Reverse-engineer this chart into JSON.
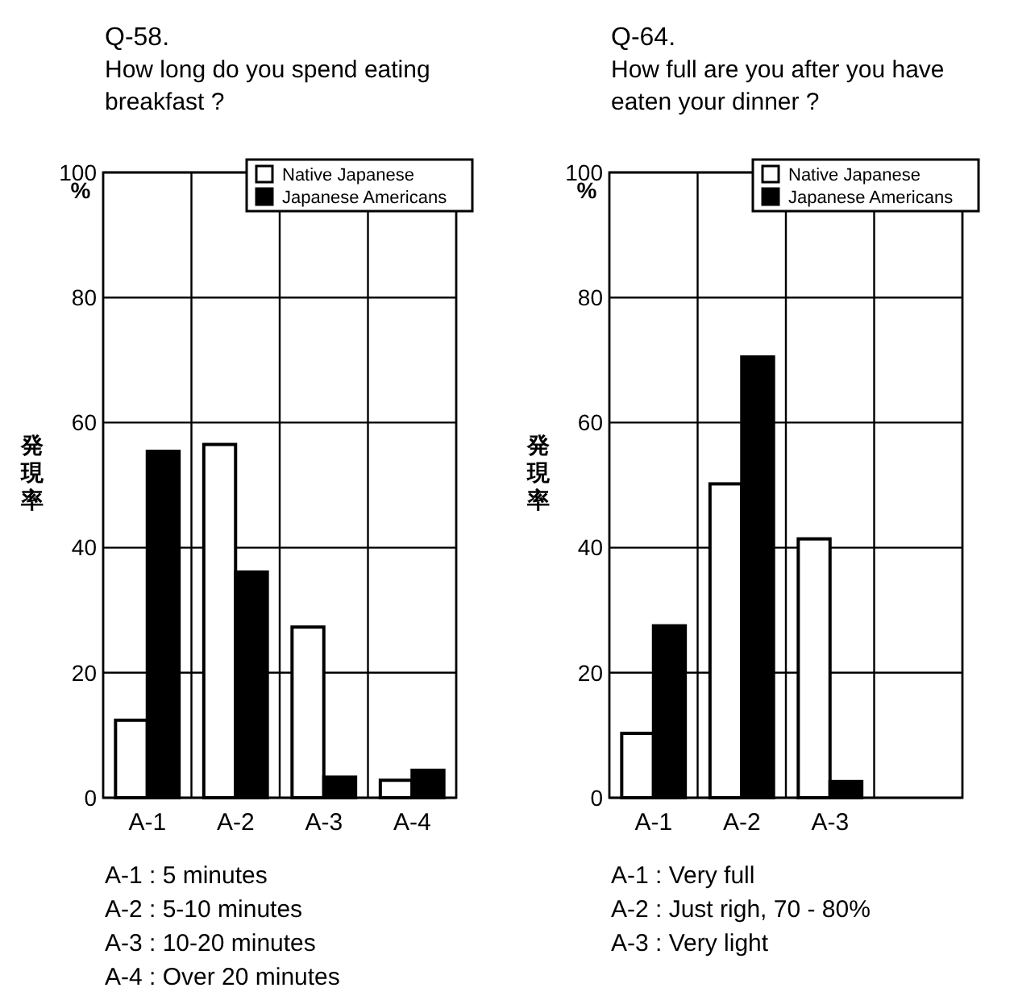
{
  "chart_data": [
    {
      "type": "bar",
      "title": "Q-58.",
      "subtitle": "How long do you spend eating breakfast ?",
      "ylabel": "発現率",
      "categories": [
        "A-1",
        "A-2",
        "A-3",
        "A-4"
      ],
      "series": [
        {
          "name": "Native Japanese",
          "color": "#ffffff",
          "values": [
            12.4,
            56.5,
            27.3,
            2.8
          ]
        },
        {
          "name": "Japanese Americans",
          "color": "#000000",
          "values": [
            55.4,
            36.1,
            3.3,
            4.4
          ]
        }
      ],
      "ylim": [
        0,
        100
      ],
      "yticks": [
        0,
        20,
        40,
        60,
        80,
        100
      ],
      "grid": true,
      "legend": "top right",
      "annotations": [
        "%",
        "A-1 : 5 minutes",
        "A-2 : 5-10 minutes",
        "A-3 : 10-20 minutes",
        "A-4 : Over 20 minutes"
      ]
    },
    {
      "type": "bar",
      "title": "Q-64.",
      "subtitle": "How full are you after you have eaten your dinner ?",
      "ylabel": "発現率",
      "categories": [
        "A-1",
        "A-2",
        "A-3",
        null
      ],
      "series": [
        {
          "name": "Native Japanese",
          "color": "#ffffff",
          "values": [
            10.3,
            50.2,
            41.4,
            null
          ]
        },
        {
          "name": "Japanese Americans",
          "color": "#000000",
          "values": [
            27.5,
            70.5,
            2.6,
            null
          ]
        }
      ],
      "ylim": [
        0,
        100
      ],
      "yticks": [
        0,
        20,
        40,
        60,
        80,
        100
      ],
      "grid": true,
      "legend": "top right",
      "annotations": [
        "%",
        "A-1 : Very full",
        "A-2 : Just righ, 70 - 80%",
        "A-3 : Very light"
      ]
    }
  ]
}
